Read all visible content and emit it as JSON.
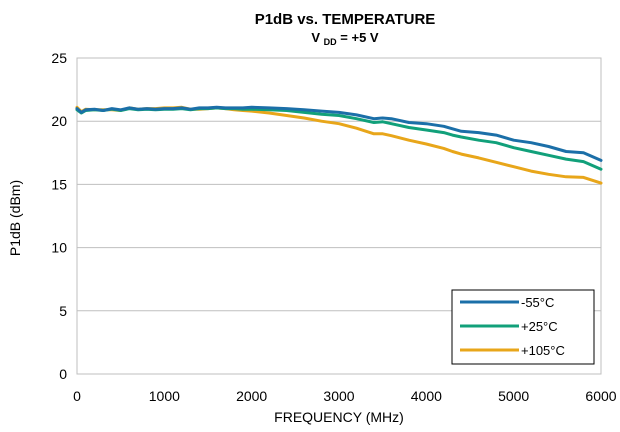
{
  "chart_data": {
    "type": "line",
    "title": "P1dB vs. TEMPERATURE",
    "subtitle": {
      "prefix": "V",
      "subscript": "DD",
      "suffix": " = +5 V"
    },
    "xlabel": "FREQUENCY (MHz)",
    "ylabel": "P1dB (dBm)",
    "xlim": [
      0,
      6000
    ],
    "ylim": [
      0,
      25
    ],
    "xticks": [
      0,
      1000,
      2000,
      3000,
      4000,
      5000,
      6000
    ],
    "yticks": [
      0,
      5,
      10,
      15,
      20,
      25
    ],
    "grid": "horizontal",
    "legend_position": "bottom-right",
    "series": [
      {
        "name": "-55°C",
        "color": "#1b6fa8",
        "x": [
          0,
          50,
          100,
          200,
          300,
          400,
          500,
          600,
          700,
          800,
          900,
          1000,
          1100,
          1200,
          1300,
          1400,
          1500,
          1600,
          1700,
          1800,
          1900,
          2000,
          2200,
          2400,
          2600,
          2800,
          3000,
          3200,
          3400,
          3500,
          3600,
          3800,
          4000,
          4200,
          4300,
          4400,
          4600,
          4800,
          5000,
          5200,
          5400,
          5600,
          5800,
          6000
        ],
        "y": [
          21.0,
          20.7,
          20.9,
          20.95,
          20.85,
          21.0,
          20.9,
          21.05,
          20.95,
          21.0,
          20.95,
          21.0,
          21.0,
          21.05,
          20.95,
          21.05,
          21.05,
          21.1,
          21.05,
          21.05,
          21.05,
          21.1,
          21.05,
          21.0,
          20.9,
          20.8,
          20.7,
          20.5,
          20.2,
          20.25,
          20.2,
          19.9,
          19.8,
          19.6,
          19.4,
          19.2,
          19.1,
          18.9,
          18.5,
          18.3,
          18.0,
          17.6,
          17.5,
          16.9
        ]
      },
      {
        "name": "+25°C",
        "color": "#11a07a",
        "x": [
          0,
          50,
          100,
          200,
          300,
          400,
          500,
          600,
          700,
          800,
          900,
          1000,
          1100,
          1200,
          1300,
          1400,
          1500,
          1600,
          1700,
          1800,
          1900,
          2000,
          2200,
          2400,
          2600,
          2800,
          3000,
          3200,
          3400,
          3500,
          3600,
          3800,
          4000,
          4200,
          4300,
          4400,
          4600,
          4800,
          5000,
          5200,
          5400,
          5600,
          5800,
          6000
        ],
        "y": [
          20.9,
          20.65,
          20.85,
          20.9,
          20.85,
          20.95,
          20.85,
          21.0,
          20.9,
          20.95,
          20.9,
          20.95,
          20.95,
          21.0,
          20.9,
          21.0,
          21.0,
          21.05,
          21.0,
          21.0,
          20.95,
          20.95,
          20.9,
          20.85,
          20.7,
          20.55,
          20.45,
          20.2,
          19.9,
          19.95,
          19.8,
          19.5,
          19.3,
          19.1,
          18.9,
          18.75,
          18.5,
          18.3,
          17.9,
          17.6,
          17.3,
          17.0,
          16.8,
          16.2
        ]
      },
      {
        "name": "+105°C",
        "color": "#e8a61a",
        "x": [
          0,
          50,
          100,
          200,
          300,
          400,
          500,
          600,
          700,
          800,
          900,
          1000,
          1100,
          1200,
          1300,
          1400,
          1500,
          1600,
          1700,
          1800,
          1900,
          2000,
          2200,
          2400,
          2600,
          2800,
          3000,
          3200,
          3400,
          3500,
          3600,
          3800,
          4000,
          4200,
          4300,
          4400,
          4600,
          4800,
          5000,
          5200,
          5400,
          5600,
          5800,
          6000
        ],
        "y": [
          21.1,
          20.75,
          20.95,
          20.9,
          20.9,
          20.9,
          20.85,
          21.05,
          20.95,
          21.0,
          21.0,
          21.05,
          21.05,
          21.1,
          20.95,
          20.95,
          21.0,
          21.05,
          21.0,
          20.9,
          20.85,
          20.8,
          20.65,
          20.45,
          20.25,
          20.0,
          19.8,
          19.45,
          19.0,
          19.0,
          18.85,
          18.5,
          18.2,
          17.85,
          17.6,
          17.4,
          17.1,
          16.75,
          16.4,
          16.05,
          15.8,
          15.6,
          15.55,
          15.1
        ]
      }
    ]
  }
}
